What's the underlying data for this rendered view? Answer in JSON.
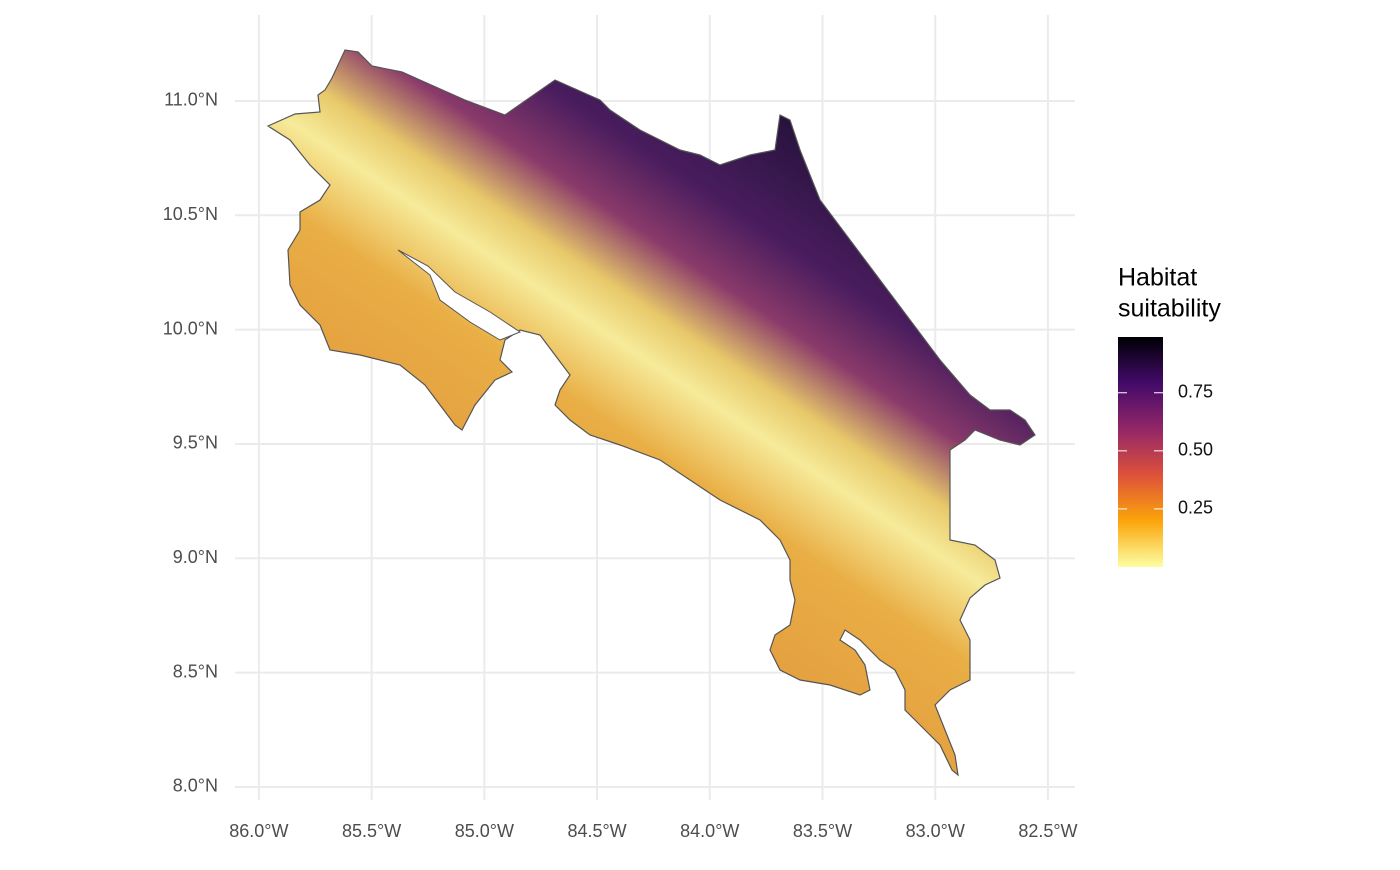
{
  "chart_data": {
    "type": "map",
    "xlim": [
      -86.106,
      -82.38
    ],
    "ylim": [
      7.943,
      11.376
    ],
    "xticks": [
      {
        "value": -86,
        "label": "86.0°W"
      },
      {
        "value": -85.5,
        "label": "85.5°W"
      },
      {
        "value": -85,
        "label": "85.0°W"
      },
      {
        "value": -84.5,
        "label": "84.5°W"
      },
      {
        "value": -84,
        "label": "84.0°W"
      },
      {
        "value": -83.5,
        "label": "83.5°W"
      },
      {
        "value": -83,
        "label": "83.0°W"
      },
      {
        "value": -82.5,
        "label": "82.5°W"
      }
    ],
    "yticks": [
      {
        "value": 8,
        "label": "8.0°N"
      },
      {
        "value": 8.5,
        "label": "8.5°N"
      },
      {
        "value": 9,
        "label": "9.0°N"
      },
      {
        "value": 9.5,
        "label": "9.5°N"
      },
      {
        "value": 10,
        "label": "10.0°N"
      },
      {
        "value": 10.5,
        "label": "10.5°N"
      },
      {
        "value": 11,
        "label": "11.0°N"
      }
    ],
    "grid": true,
    "legend": {
      "title": [
        "Habitat",
        "suitability"
      ],
      "limits": [
        0,
        0.99
      ],
      "ticks": [
        0.25,
        {
          "value": 0.5,
          "label": "0.50"
        },
        0.75
      ],
      "colormap": [
        "#fcffa4",
        "#fca50a",
        "#dd513a",
        "#932667",
        "#420a68",
        "#000004"
      ]
    }
  }
}
